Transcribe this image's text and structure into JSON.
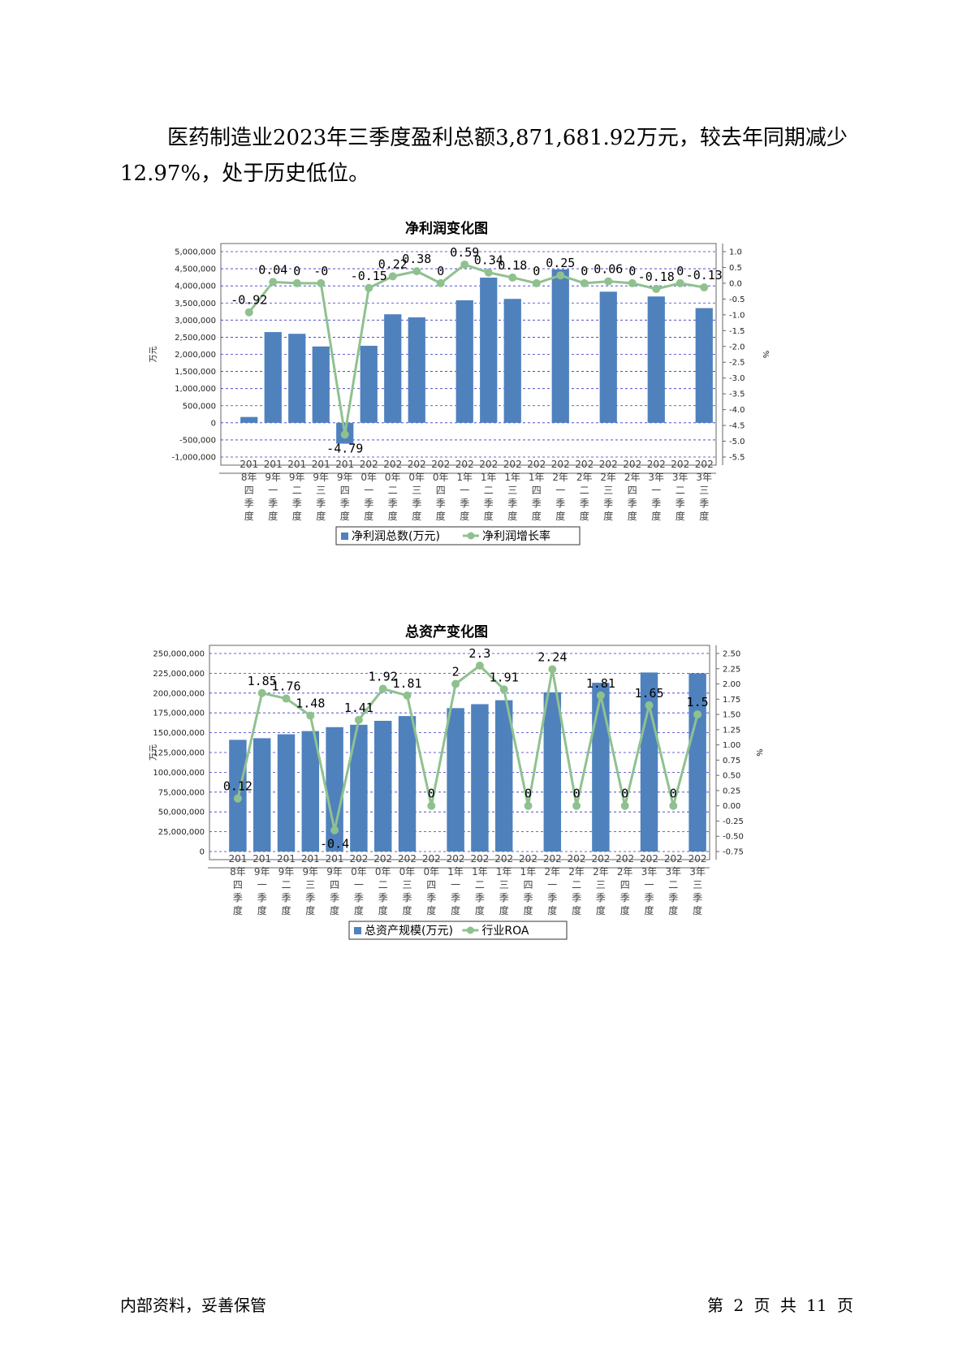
{
  "paragraph": "医药制造业2023年三季度盈利总额3,871,681.92万元，较去年同期减少12.97%，处于历史低位。",
  "footer": {
    "left": "内部资料，妥善保管",
    "right": "第 2 页   共 11 页"
  },
  "colors": {
    "bar": "#4f81bd",
    "line": "#8fc18f",
    "grid": "#3333cc"
  },
  "chart_data": [
    {
      "type": "bar",
      "title": "净利润变化图",
      "ylabel": "万元",
      "y2label": "%",
      "categories": [
        "2018年四季度",
        "2019年一季度",
        "2019年二季度",
        "2019年三季度",
        "2019年四季度",
        "2020年一季度",
        "2020年二季度",
        "2020年三季度",
        "2020年四季度",
        "2021年一季度",
        "2021年二季度",
        "2021年三季度",
        "2021年四季度",
        "2022年一季度",
        "2022年二季度",
        "2022年三季度",
        "2022年四季度",
        "2023年一季度",
        "2023年二季度",
        "2023年三季度"
      ],
      "ylim": [
        -1000000,
        5000000
      ],
      "y2lim": [
        -5.5,
        1.0
      ],
      "yticks": [
        "5,000,000",
        "4,500,000",
        "4,000,000",
        "3,500,000",
        "3,000,000",
        "2,500,000",
        "2,000,000",
        "1,500,000",
        "1,000,000",
        "500,000",
        "0",
        "-500,000",
        "-1,000,000"
      ],
      "y2ticks": [
        "1.0",
        "0.5",
        "0.0",
        "-0.5",
        "-1.0",
        "-1.5",
        "-2.0",
        "-2.5",
        "-3.0",
        "-3.5",
        "-4.0",
        "-4.5",
        "-5.0",
        "-5.5"
      ],
      "series": [
        {
          "name": "净利润总数(万元)",
          "kind": "bar",
          "axis": "left",
          "values": [
            170000,
            2650000,
            2600000,
            2230000,
            -610000,
            2250000,
            3170000,
            3080000,
            0,
            3580000,
            4240000,
            3620000,
            0,
            4480000,
            0,
            3830000,
            0,
            3690000,
            0,
            3350000
          ]
        },
        {
          "name": "净利润增长率",
          "kind": "line",
          "axis": "right",
          "values": [
            -0.92,
            0.04,
            0,
            -0.0,
            -4.79,
            -0.15,
            0.22,
            0.38,
            0,
            0.59,
            0.34,
            0.18,
            0,
            0.25,
            0,
            0.06,
            0,
            -0.18,
            0,
            -0.13
          ],
          "labels": [
            "-0.92",
            "0.04",
            "0",
            "-0",
            "-4.79",
            "-0.15",
            "0.22",
            "0.38",
            "0",
            "0.59",
            "0.34",
            "0.18",
            "0",
            "0.25",
            "0",
            "0.06",
            "0",
            "-0.18",
            "0",
            "-0.13"
          ]
        }
      ],
      "legend": "bottom"
    },
    {
      "type": "bar",
      "title": "总资产变化图",
      "ylabel": "万元",
      "y2label": "%",
      "categories": [
        "2018年四季度",
        "2019年一季度",
        "2019年二季度",
        "2019年三季度",
        "2019年四季度",
        "2020年一季度",
        "2020年二季度",
        "2020年三季度",
        "2020年四季度",
        "2021年一季度",
        "2021年二季度",
        "2021年三季度",
        "2021年四季度",
        "2022年一季度",
        "2022年二季度",
        "2022年三季度",
        "2022年四季度",
        "2023年一季度",
        "2023年二季度",
        "2023年三季度"
      ],
      "ylim": [
        0,
        250000000
      ],
      "y2lim": [
        -0.75,
        2.5
      ],
      "yticks": [
        "250,000,000",
        "225,000,000",
        "200,000,000",
        "175,000,000",
        "150,000,000",
        "125,000,000",
        "100,000,000",
        "75,000,000",
        "50,000,000",
        "25,000,000",
        "0"
      ],
      "y2ticks": [
        "2.50",
        "2.25",
        "2.00",
        "1.75",
        "1.50",
        "1.25",
        "1.00",
        "0.75",
        "0.50",
        "0.25",
        "0.00",
        "-0.25",
        "-0.50",
        "-0.75"
      ],
      "series": [
        {
          "name": "总资产规模(万元)",
          "kind": "bar",
          "axis": "left",
          "values": [
            141000000,
            143000000,
            148000000,
            152000000,
            157000000,
            160000000,
            165000000,
            171000000,
            0,
            181000000,
            186000000,
            191000000,
            0,
            201000000,
            0,
            213000000,
            0,
            226000000,
            0,
            225000000
          ]
        },
        {
          "name": "行业ROA",
          "kind": "line",
          "axis": "right",
          "values": [
            0.12,
            1.85,
            1.76,
            1.48,
            -0.4,
            1.41,
            1.92,
            1.81,
            0,
            2,
            2.3,
            1.91,
            0,
            2.24,
            0,
            1.81,
            0,
            1.65,
            0,
            1.5
          ],
          "labels": [
            "0.12",
            "1.85",
            "1.76",
            "1.48",
            "-0.4",
            "1.41",
            "1.92",
            "1.81",
            "0",
            "2",
            "2.3",
            "1.91",
            "0",
            "2.24",
            "0",
            "1.81",
            "0",
            "1.65",
            "0",
            "1.5"
          ]
        }
      ],
      "legend": "bottom"
    }
  ]
}
